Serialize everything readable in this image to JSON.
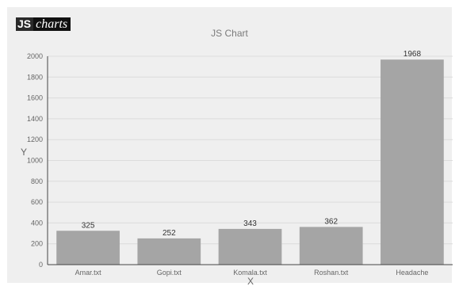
{
  "logo": {
    "js": "JS",
    "charts": "charts"
  },
  "chart_data": {
    "type": "bar",
    "title": "JS Chart",
    "xlabel": "X",
    "ylabel": "Y",
    "categories": [
      "Amar.txt",
      "Gopi.txt",
      "Komala.txt",
      "Roshan.txt",
      "Headache"
    ],
    "values": [
      325,
      252,
      343,
      362,
      1968
    ],
    "data_labels": [
      "325",
      "252",
      "343",
      "362",
      "1968"
    ],
    "ylim": [
      0,
      2000
    ],
    "yticks": [
      0,
      200,
      400,
      600,
      800,
      1000,
      1200,
      1400,
      1600,
      1800,
      2000
    ],
    "grid": true,
    "colors": {
      "bar": "#a5a5a5",
      "grid": "#dcdcdc",
      "axis": "#444444",
      "text": "#666666",
      "label": "#333333"
    }
  }
}
